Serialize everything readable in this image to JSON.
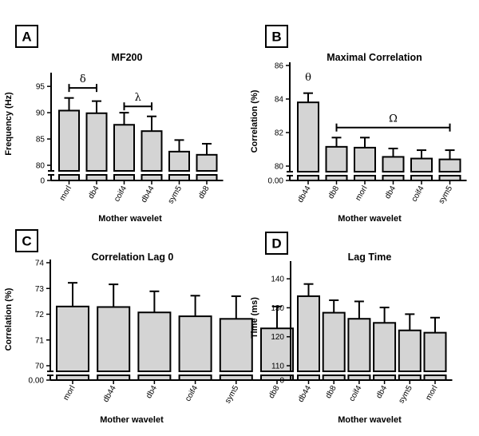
{
  "chart_data": [
    {
      "panel": "A",
      "type": "bar",
      "title": "MF200",
      "xlabel": "Mother wavelet",
      "ylabel": "Frequency (Hz)",
      "ylim": [
        80,
        97
      ],
      "yticks": [
        80,
        85,
        90,
        95
      ],
      "ybreak_label": "0",
      "categories": [
        "morl",
        "db4",
        "coif4",
        "db44",
        "sym5",
        "db8"
      ],
      "values": [
        90.4,
        89.9,
        87.7,
        86.5,
        82.6,
        82.0
      ],
      "errors": [
        2.4,
        2.3,
        2.3,
        2.8,
        2.2,
        2.1
      ],
      "annotations": [
        {
          "symbol": "δ",
          "from": 0,
          "to": 1,
          "y": 94.7
        },
        {
          "symbol": "λ",
          "from": 2,
          "to": 3,
          "y": 91.2
        }
      ]
    },
    {
      "panel": "B",
      "type": "bar",
      "title": "Maximal Correlation",
      "xlabel": "Mother wavelet",
      "ylabel": "Correlation (%)",
      "ylim": [
        80,
        86
      ],
      "yticks": [
        80,
        82,
        84,
        86
      ],
      "ybreak_label": "0.00",
      "categories": [
        "db44",
        "db8",
        "morl",
        "db4",
        "coif4",
        "sym5"
      ],
      "values": [
        83.8,
        81.15,
        81.1,
        80.55,
        80.45,
        80.4
      ],
      "errors": [
        0.55,
        0.55,
        0.6,
        0.5,
        0.5,
        0.55
      ],
      "annotations": [
        {
          "symbol": "θ",
          "from": 0,
          "to": 0,
          "y": 85.1
        },
        {
          "symbol": "Ω",
          "from": 1,
          "to": 5,
          "y": 82.3
        }
      ]
    },
    {
      "panel": "C",
      "type": "bar",
      "title": "Correlation Lag 0",
      "xlabel": "Mother wavelet",
      "ylabel": "Correlation (%)",
      "ylim": [
        70,
        74
      ],
      "yticks": [
        70,
        71,
        72,
        73,
        74
      ],
      "ybreak_label": "0.00",
      "categories": [
        "morl",
        "db44",
        "db4",
        "coif4",
        "sym5",
        "db8"
      ],
      "values": [
        72.3,
        72.28,
        72.07,
        71.92,
        71.82,
        71.45
      ],
      "errors": [
        0.92,
        0.88,
        0.82,
        0.8,
        0.88,
        0.85
      ],
      "annotations": []
    },
    {
      "panel": "D",
      "type": "bar",
      "title": "Lag Time",
      "xlabel": "Mother wavelet",
      "ylabel": "Time (ms)",
      "ylim": [
        110,
        145
      ],
      "yticks": [
        110,
        120,
        130,
        140
      ],
      "ybreak_label": "0",
      "categories": [
        "db44",
        "db8",
        "coif4",
        "db4",
        "sym5",
        "morl"
      ],
      "values": [
        134.0,
        128.3,
        126.2,
        124.8,
        122.2,
        121.4
      ],
      "errors": [
        4.2,
        4.3,
        6.0,
        5.3,
        5.6,
        5.2
      ],
      "annotations": []
    }
  ]
}
